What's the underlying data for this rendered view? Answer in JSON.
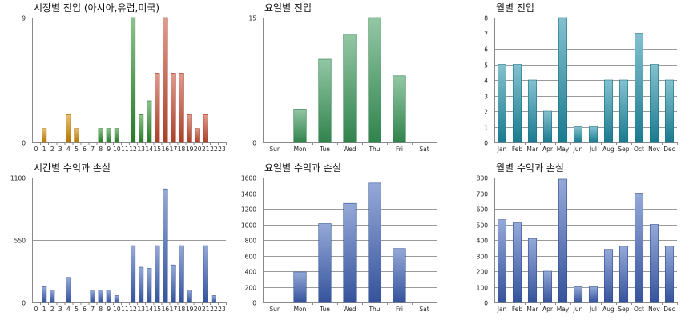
{
  "chart_data": [
    {
      "type": "bar",
      "title": "시장별 진입 (아시아,유럽,미국)",
      "categories": [
        "0",
        "1",
        "2",
        "3",
        "4",
        "5",
        "6",
        "7",
        "8",
        "9",
        "10",
        "11",
        "12",
        "13",
        "14",
        "15",
        "16",
        "17",
        "18",
        "19",
        "20",
        "21",
        "22",
        "23"
      ],
      "series": [
        {
          "color": "#d58a00",
          "values": [
            0,
            1,
            0,
            0,
            2,
            1,
            0,
            0,
            0,
            0,
            0,
            0,
            0,
            0,
            0,
            0,
            0,
            0,
            0,
            0,
            0,
            0,
            0,
            0
          ]
        },
        {
          "color": "#2f8f2f",
          "values": [
            0,
            0,
            0,
            0,
            0,
            0,
            0,
            0,
            1,
            1,
            1,
            0,
            9,
            2,
            3,
            0,
            0,
            0,
            0,
            0,
            0,
            0,
            0,
            0
          ]
        },
        {
          "color": "#c84a30",
          "values": [
            0,
            0,
            0,
            0,
            0,
            0,
            0,
            0,
            0,
            0,
            0,
            0,
            0,
            0,
            0,
            5,
            9,
            5,
            5,
            2,
            1,
            2,
            0,
            0
          ]
        }
      ],
      "ylim": [
        0,
        9
      ],
      "yticks": [
        0,
        9
      ],
      "grid": true
    },
    {
      "type": "bar",
      "title": "요일별 진입",
      "categories": [
        "Sun",
        "Mon",
        "Tue",
        "Wed",
        "Thu",
        "Fri",
        "Sat"
      ],
      "series": [
        {
          "color": "#3a9a5a",
          "values": [
            0,
            4,
            10,
            13,
            15,
            8,
            0
          ]
        }
      ],
      "ylim": [
        0,
        15
      ],
      "yticks": [
        0,
        15
      ],
      "grid": true
    },
    {
      "type": "bar",
      "title": "월별 진입",
      "categories": [
        "Jan",
        "Feb",
        "Mar",
        "Apr",
        "May",
        "Jun",
        "Jul",
        "Aug",
        "Sep",
        "Oct",
        "Nov",
        "Dec"
      ],
      "series": [
        {
          "color": "#1f8fa8",
          "values": [
            5,
            5,
            4,
            2,
            8,
            1,
            1,
            4,
            4,
            7,
            5,
            4
          ]
        }
      ],
      "ylim": [
        0,
        8
      ],
      "yticks": [
        0,
        1,
        2,
        3,
        4,
        5,
        6,
        7,
        8
      ],
      "grid": true
    },
    {
      "type": "bar",
      "title": "시간별 수익과 손실",
      "categories": [
        "0",
        "1",
        "2",
        "3",
        "4",
        "5",
        "6",
        "7",
        "8",
        "9",
        "10",
        "11",
        "12",
        "13",
        "14",
        "15",
        "16",
        "17",
        "18",
        "19",
        "20",
        "21",
        "22",
        "23"
      ],
      "series": [
        {
          "color": "#3e62b8",
          "values": [
            0,
            140,
            110,
            0,
            220,
            0,
            0,
            110,
            110,
            110,
            60,
            0,
            500,
            310,
            300,
            500,
            1000,
            330,
            500,
            110,
            0,
            500,
            60,
            0
          ]
        }
      ],
      "ylim": [
        0,
        1100
      ],
      "yticks": [
        0,
        550,
        1100
      ],
      "grid": true
    },
    {
      "type": "bar",
      "title": "요일별 수익과 손실",
      "categories": [
        "Sun",
        "Mon",
        "Tue",
        "Wed",
        "Thu",
        "Fri",
        "Sat"
      ],
      "series": [
        {
          "color": "#3e62b8",
          "values": [
            0,
            390,
            1010,
            1270,
            1530,
            690,
            0
          ]
        }
      ],
      "ylim": [
        0,
        1600
      ],
      "yticks": [
        0,
        200,
        400,
        600,
        800,
        1000,
        1200,
        1400,
        1600
      ],
      "grid": true
    },
    {
      "type": "bar",
      "title": "월별 수익과 손실",
      "categories": [
        "Jan",
        "Feb",
        "Mar",
        "Apr",
        "May",
        "Jun",
        "Jul",
        "Aug",
        "Sep",
        "Oct",
        "Nov",
        "Dec"
      ],
      "series": [
        {
          "color": "#3e62b8",
          "values": [
            530,
            510,
            410,
            200,
            790,
            100,
            100,
            340,
            360,
            700,
            500,
            360
          ]
        }
      ],
      "ylim": [
        0,
        800
      ],
      "yticks": [
        0,
        100,
        200,
        300,
        400,
        500,
        600,
        700,
        800
      ],
      "grid": true
    }
  ]
}
